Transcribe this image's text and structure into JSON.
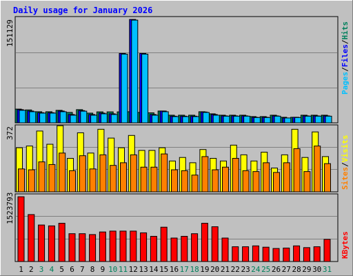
{
  "chart_data": {
    "type": "bar",
    "title": "Daily usage for January 2026",
    "categories": [
      "1",
      "2",
      "3",
      "4",
      "5",
      "6",
      "7",
      "8",
      "9",
      "10",
      "11",
      "12",
      "13",
      "14",
      "15",
      "16",
      "17",
      "18",
      "19",
      "20",
      "21",
      "22",
      "23",
      "24",
      "25",
      "26",
      "27",
      "28",
      "29",
      "30",
      "31"
    ],
    "weekend_days": [
      3,
      4,
      10,
      11,
      17,
      18,
      24,
      25,
      31
    ],
    "panels": [
      {
        "name": "hits-files",
        "max_label": "151129",
        "ymax": 151129,
        "grid": true,
        "series": [
          {
            "name": "Hits",
            "color": "#00805c",
            "values": [
              19800,
              18600,
              16000,
              16000,
              18000,
              15000,
              19000,
              14000,
              15800,
              15800,
              15800,
              16000,
              15000,
              14400,
              17000,
              11000,
              11000,
              11000,
              16000,
              13000,
              11000,
              11000,
              11000,
              9000,
              9000,
              11000,
              8000,
              8000,
              11000,
              11000,
              11000
            ]
          },
          {
            "name": "Files",
            "color": "#0000ff",
            "values": [
              19000,
              17000,
              14600,
              14600,
              17000,
              12000,
              17600,
              12000,
              14000,
              13000,
              100000,
              149000,
              100000,
              12000,
              17000,
              9600,
              9600,
              9600,
              15600,
              12000,
              10000,
              10000,
              10000,
              8000,
              8000,
              10000,
              7000,
              8000,
              10000,
              10000,
              10000
            ]
          },
          {
            "name": "Pages",
            "color": "#00c0ff",
            "values": [
              18000,
              16000,
              14000,
              14000,
              16000,
              11000,
              16800,
              11000,
              13000,
              12000,
              99000,
              148000,
              99000,
              11000,
              16000,
              9000,
              9000,
              9000,
              15000,
              11000,
              9600,
              9600,
              9600,
              7600,
              7600,
              9600,
              7000,
              7600,
              9600,
              9600,
              9600
            ]
          }
        ]
      },
      {
        "name": "visits-sites",
        "max_label": "372",
        "ymax": 372,
        "grid": true,
        "series": [
          {
            "name": "Visits",
            "color": "#ffff00",
            "values": [
              250,
              260,
              345,
              270,
              375,
              190,
              335,
              220,
              355,
              305,
              250,
              320,
              235,
              235,
              250,
              175,
              195,
              165,
              240,
              190,
              175,
              265,
              210,
              175,
              225,
              135,
              210,
              355,
              195,
              340,
              200
            ]
          },
          {
            "name": "Sites",
            "color": "#ff8000",
            "values": [
              130,
              125,
              170,
              155,
              220,
              120,
              205,
              130,
              210,
              150,
              165,
              210,
              140,
              140,
              215,
              125,
              120,
              95,
              200,
              125,
              140,
              190,
              120,
              115,
              165,
              110,
              165,
              245,
              115,
              260,
              160
            ]
          }
        ]
      },
      {
        "name": "kbytes",
        "max_label": "1523793",
        "ymax": 1523793,
        "grid": true,
        "series": [
          {
            "name": "KBytes",
            "color": "#ff0000",
            "values": [
              1490000,
              1080000,
              840000,
              820000,
              880000,
              640000,
              640000,
              620000,
              680000,
              700000,
              700000,
              700000,
              660000,
              580000,
              790000,
              540000,
              580000,
              640000,
              880000,
              800000,
              540000,
              340000,
              340000,
              360000,
              330000,
              300000,
              310000,
              360000,
              320000,
              340000,
              510000
            ]
          }
        ]
      }
    ]
  },
  "colors": {
    "background": "#c0c0c0",
    "title": "#0000ff",
    "axis_label": "#000000",
    "weekend_label": "#00805c"
  }
}
